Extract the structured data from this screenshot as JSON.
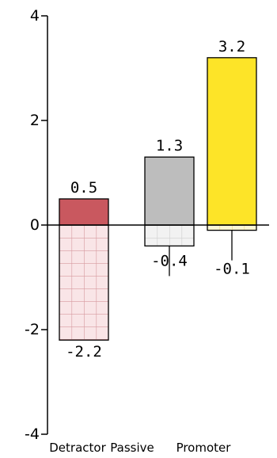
{
  "chart_data": {
    "type": "bar",
    "title": "",
    "xlabel": "",
    "ylabel": "",
    "ylim": [
      -4,
      4
    ],
    "yticks": [
      4,
      2,
      0,
      -2,
      -4
    ],
    "categories": [
      "Detractor",
      "Passive",
      "Promoter"
    ],
    "series": [
      {
        "values": [
          0.5,
          1.3,
          3.2
        ],
        "value_labels": [
          "0.5",
          "1.3",
          "3.2"
        ]
      },
      {
        "values": [
          -2.2,
          -0.4,
          -0.1
        ],
        "value_labels": [
          "-2.2",
          "-0.4",
          "-0.1"
        ]
      }
    ],
    "colors": {
      "Detractor": {
        "positive": "#c9585f",
        "negative": "#f9e5e7",
        "negative_grid": "#d79aa0"
      },
      "Passive": {
        "positive": "#bdbdbd",
        "negative": "#f2f2f2",
        "negative_grid": "#cfcfcf"
      },
      "Promoter": {
        "positive": "#fde428",
        "negative": "#fef7d5",
        "negative_grid": "#ead98a"
      }
    },
    "grid": false,
    "legend": "none"
  }
}
